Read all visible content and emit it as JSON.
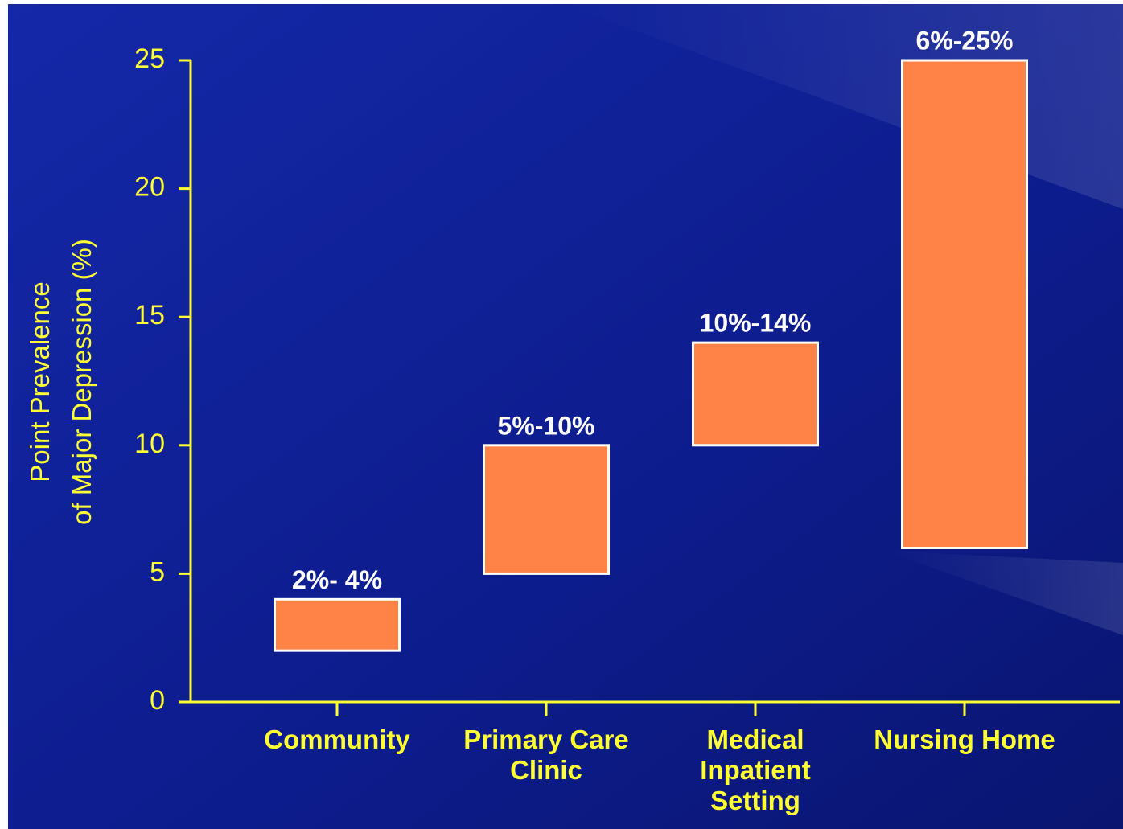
{
  "chart_data": {
    "type": "floating-bar",
    "ylabel": [
      "Point Prevalence",
      "of Major Depression (%)"
    ],
    "categories": [
      [
        "Community"
      ],
      [
        "Primary Care",
        "Clinic"
      ],
      [
        "Medical",
        "Inpatient",
        "Setting"
      ],
      [
        "Nursing Home"
      ]
    ],
    "lows": [
      2,
      5,
      10,
      6
    ],
    "highs": [
      4,
      10,
      14,
      25
    ],
    "value_labels": [
      "2%- 4%",
      "5%-10%",
      "10%-14%",
      "6%-25%"
    ],
    "color": "#ff8247",
    "ylim": [
      0,
      25
    ],
    "yticks": [
      0,
      5,
      10,
      15,
      20,
      25
    ]
  }
}
